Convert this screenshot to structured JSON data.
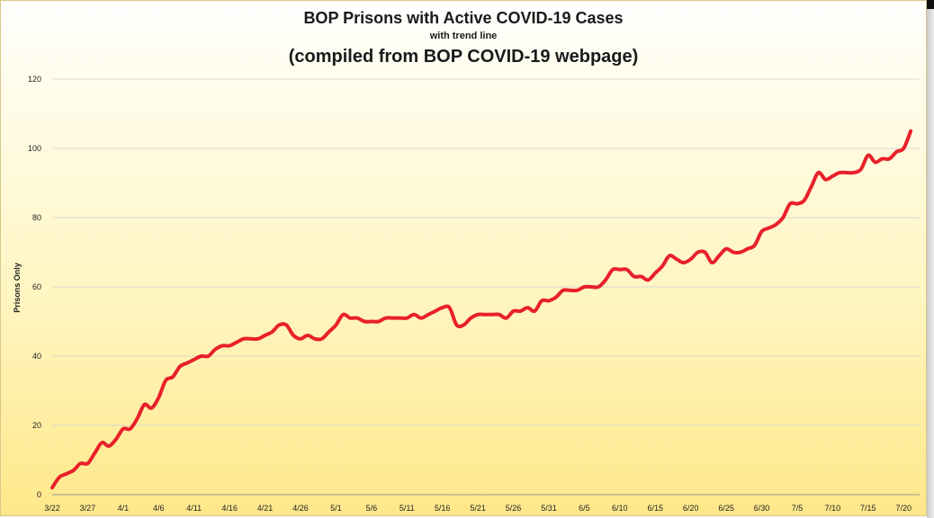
{
  "chart_data": {
    "type": "line",
    "title": "BOP Prisons with Active COVID-19 Cases",
    "subtitle": "with trend line",
    "title2": "(compiled from BOP COVID-19 webpage)",
    "ylabel": "Prisons Only",
    "xlabel": "",
    "ylim": [
      0,
      120
    ],
    "yticks": [
      0,
      20,
      40,
      60,
      80,
      100,
      120
    ],
    "xtick_labels": [
      "3/22",
      "3/27",
      "4/1",
      "4/6",
      "4/11",
      "4/16",
      "4/21",
      "4/26",
      "5/1",
      "5/6",
      "5/11",
      "5/16",
      "5/21",
      "5/26",
      "5/31",
      "6/5",
      "6/10",
      "6/15",
      "6/20",
      "6/25",
      "6/30",
      "7/5",
      "7/10",
      "7/15",
      "7/20"
    ],
    "grid": true,
    "series": [
      {
        "color": "#e8202a",
        "values": [
          2,
          5,
          6,
          7,
          9,
          9,
          12,
          15,
          14,
          16,
          19,
          19,
          22,
          26,
          25,
          28,
          33,
          34,
          37,
          38,
          39,
          40,
          40,
          42,
          43,
          43,
          44,
          45,
          45,
          45,
          46,
          47,
          49,
          49,
          46,
          45,
          46,
          45,
          45,
          47,
          49,
          52,
          51,
          51,
          50,
          50,
          50,
          51,
          51,
          51,
          51,
          52,
          51,
          52,
          53,
          54,
          54,
          49,
          49,
          51,
          52,
          52,
          52,
          52,
          51,
          53,
          53,
          54,
          53,
          56,
          56,
          57,
          59,
          59,
          59,
          60,
          60,
          60,
          62,
          65,
          65,
          65,
          63,
          63,
          62,
          64,
          66,
          69,
          68,
          67,
          68,
          70,
          70,
          67,
          69,
          71,
          70,
          70,
          71,
          72,
          76,
          77,
          78,
          80,
          84,
          84,
          85,
          89,
          93,
          91,
          92,
          93,
          93,
          93,
          94,
          98,
          96,
          97,
          97,
          99,
          100,
          105
        ]
      }
    ]
  }
}
